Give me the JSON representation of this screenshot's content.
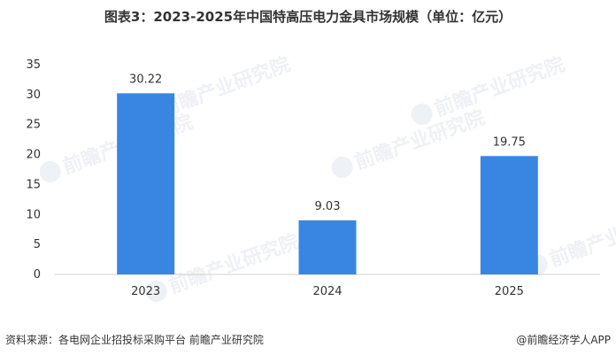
{
  "title": "图表3：2023-2025年中国特高压电力金具市场规模（单位：亿元）",
  "chart_data": {
    "type": "bar",
    "categories": [
      "2023",
      "2024",
      "2025"
    ],
    "values": [
      30.22,
      9.03,
      19.75
    ],
    "value_labels": [
      "30.22",
      "9.03",
      "19.75"
    ],
    "ylim": [
      0,
      35
    ],
    "yticks": [
      0,
      5,
      10,
      15,
      20,
      25,
      30,
      35
    ],
    "bar_color": "#3886e1",
    "grid": false
  },
  "watermark": {
    "text": "前瞻产业研究院",
    "color": "#eef1f5"
  },
  "footer": {
    "source": "资料来源：各电网企业招投标采购平台 前瞻产业研究院",
    "brand": "@前瞻经济学人APP"
  }
}
